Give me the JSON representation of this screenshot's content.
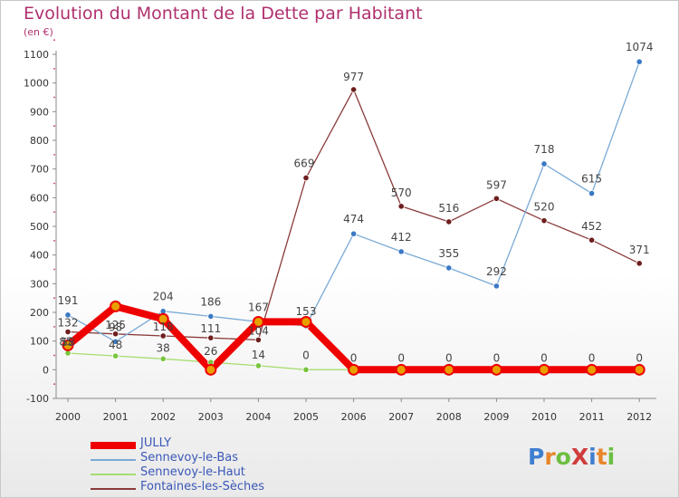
{
  "page": {
    "title": "Evolution du Montant de la Dette par Habitant",
    "subtitle": "(en €)"
  },
  "logo": {
    "text": "ProXiti",
    "letter_colors": [
      "#3f7fd0",
      "#e8862b",
      "#6cbf3f",
      "#d03c3c",
      "#3f7fd0",
      "#e8862b",
      "#6cbf3f"
    ]
  },
  "chart_data": {
    "type": "line",
    "title": "Evolution du Montant de la Dette par Habitant",
    "subtitle": "(en €)",
    "xlabel": "",
    "ylabel": "",
    "x": [
      "2000",
      "2001",
      "2002",
      "2003",
      "2004",
      "2005",
      "2006",
      "2007",
      "2008",
      "2009",
      "2010",
      "2011",
      "2012"
    ],
    "ylim": [
      -100,
      1100
    ],
    "yticks": [
      -100,
      0,
      100,
      200,
      300,
      400,
      500,
      600,
      700,
      800,
      900,
      1000,
      1100
    ],
    "grid": false,
    "legend_position": "bottom-left",
    "series": [
      {
        "name": "JULLY",
        "color": "#ee0000",
        "marker": "#e8a000",
        "values": [
          85,
          221,
          177,
          0,
          167,
          167,
          0,
          0,
          0,
          0,
          0,
          0,
          0
        ]
      },
      {
        "name": "Sennevoy-le-Bas",
        "color": "#7aaad6",
        "marker": "#3b79c4",
        "values": [
          191,
          98,
          204,
          186,
          167,
          153,
          474,
          412,
          355,
          292,
          718,
          615,
          1074
        ]
      },
      {
        "name": "Sennevoy-le-Haut",
        "color": "#a6dd6f",
        "marker": "#78c53c",
        "values": [
          58,
          48,
          38,
          26,
          14,
          0,
          0,
          0,
          0,
          0,
          0,
          0,
          0
        ]
      },
      {
        "name": "Fontaines-les-Sèches",
        "color": "#8a3a3a",
        "marker": "#6e1d1d",
        "values": [
          132,
          125,
          118,
          111,
          104,
          669,
          977,
          570,
          516,
          597,
          520,
          452,
          371
        ]
      }
    ],
    "point_labels": [
      {
        "series": 0,
        "labels": [
          "85",
          "",
          "",
          "",
          "",
          "",
          "0",
          "0",
          "0",
          "0",
          "0",
          "0",
          "0"
        ]
      },
      {
        "series": 1,
        "labels": [
          "191",
          "98",
          "204",
          "186",
          "167",
          "153",
          "474",
          "412",
          "355",
          "292",
          "718",
          "615",
          "1074"
        ]
      },
      {
        "series": 2,
        "labels": [
          "58",
          "48",
          "38",
          "26",
          "14",
          "0",
          "",
          "",
          "",
          "",
          "",
          "",
          ""
        ]
      },
      {
        "series": 3,
        "labels": [
          "132",
          "125",
          "118",
          "111",
          "104",
          "669",
          "977",
          "570",
          "516",
          "597",
          "520",
          "452",
          "371"
        ]
      }
    ]
  }
}
